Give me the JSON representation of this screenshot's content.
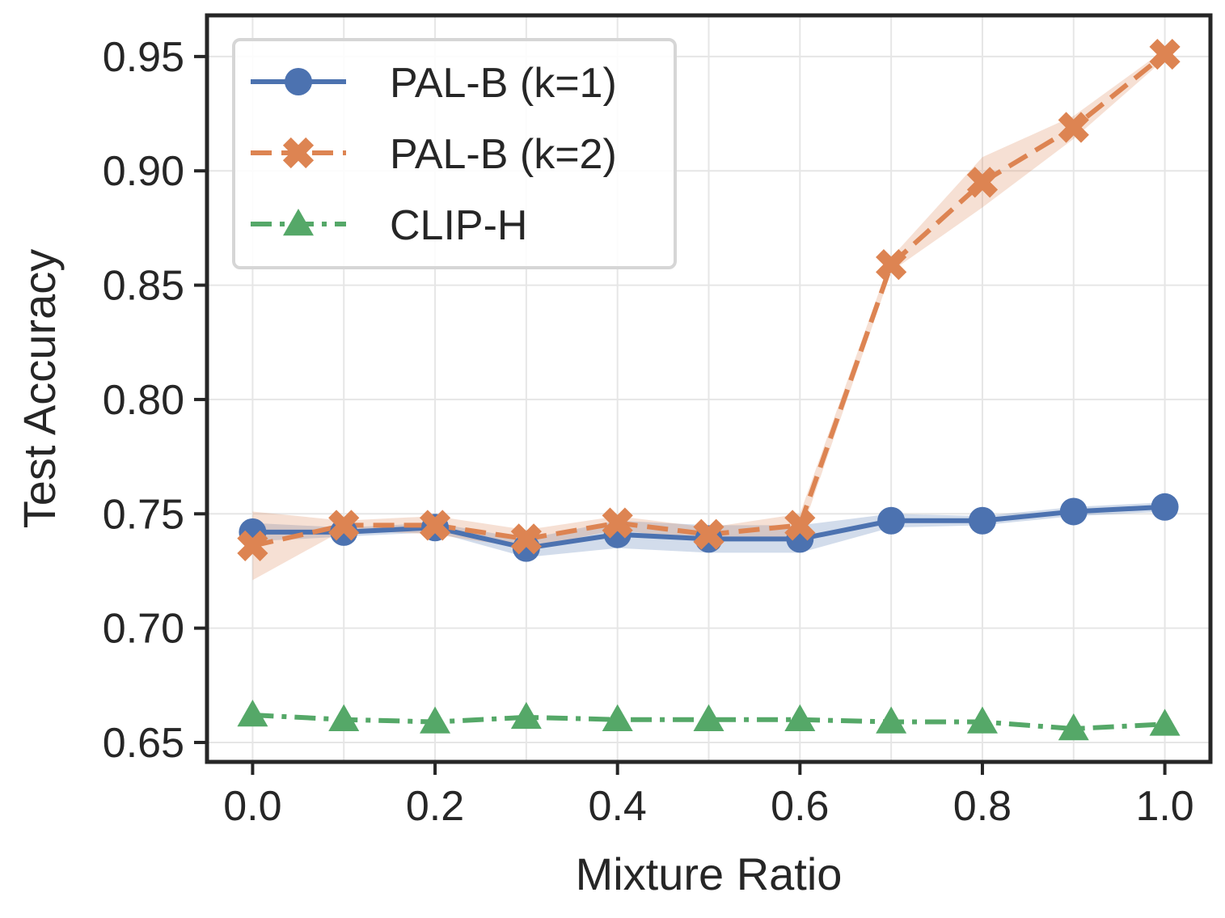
{
  "chart_data": {
    "type": "line",
    "xlabel": "Mixture Ratio",
    "ylabel": "Test Accuracy",
    "xlim": [
      -0.05,
      1.05
    ],
    "ylim": [
      0.6415,
      0.968
    ],
    "xticks": [
      "0.0",
      "0.2",
      "0.4",
      "0.6",
      "0.8",
      "1.0"
    ],
    "yticks": [
      "0.65",
      "0.70",
      "0.75",
      "0.80",
      "0.85",
      "0.90",
      "0.95"
    ],
    "grid": true,
    "legend_position": "top-left",
    "x": [
      0.0,
      0.1,
      0.2,
      0.3,
      0.4,
      0.5,
      0.6,
      0.7,
      0.8,
      0.9,
      1.0
    ],
    "series": [
      {
        "name": "PAL-B (k=1)",
        "color": "#4c72b0",
        "marker": "circle",
        "linestyle": "solid",
        "values": [
          0.742,
          0.742,
          0.744,
          0.735,
          0.741,
          0.739,
          0.739,
          0.747,
          0.747,
          0.751,
          0.753
        ],
        "band_low": [
          0.738,
          0.74,
          0.742,
          0.731,
          0.735,
          0.733,
          0.733,
          0.744,
          0.745,
          0.749,
          0.751
        ],
        "band_high": [
          0.746,
          0.744,
          0.746,
          0.739,
          0.747,
          0.745,
          0.745,
          0.75,
          0.749,
          0.753,
          0.755
        ]
      },
      {
        "name": "PAL-B (k=2)",
        "color": "#dd8452",
        "marker": "x",
        "linestyle": "dashed",
        "values": [
          0.736,
          0.745,
          0.745,
          0.739,
          0.746,
          0.741,
          0.745,
          0.859,
          0.895,
          0.919,
          0.951
        ],
        "band_low": [
          0.721,
          0.743,
          0.741,
          0.735,
          0.743,
          0.738,
          0.74,
          0.856,
          0.884,
          0.914,
          0.949
        ],
        "band_high": [
          0.751,
          0.747,
          0.749,
          0.743,
          0.749,
          0.744,
          0.75,
          0.862,
          0.906,
          0.924,
          0.953
        ]
      },
      {
        "name": "CLIP-H",
        "color": "#55a868",
        "marker": "triangle",
        "linestyle": "dashdot",
        "values": [
          0.662,
          0.66,
          0.659,
          0.661,
          0.66,
          0.66,
          0.66,
          0.659,
          0.659,
          0.656,
          0.658
        ]
      }
    ]
  }
}
